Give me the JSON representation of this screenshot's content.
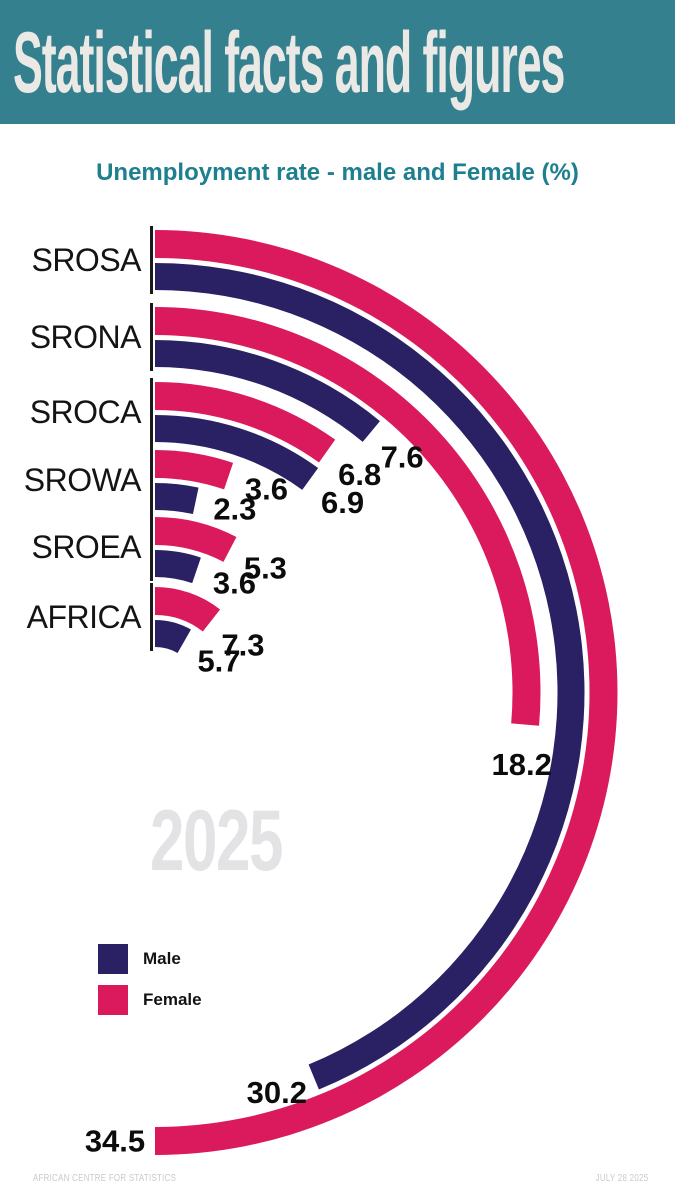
{
  "header": {
    "title": "Statistical facts and figures",
    "bg_color": "#34808e",
    "text_color": "#eae9e5"
  },
  "subtitle": {
    "text": "Unemployment rate - male and Female (%)",
    "color": "#1e7f8e"
  },
  "watermark": {
    "text": "2025",
    "color": "#e3e3e6"
  },
  "legend": {
    "items": [
      {
        "label": "Male",
        "color": "#2a2064"
      },
      {
        "label": "Female",
        "color": "#db1a5e"
      }
    ]
  },
  "footer": {
    "left": "AFRICAN CENTRE FOR STATISTICS",
    "right": "JULY 28 2025",
    "color": "#c7c9cc"
  },
  "chart_data": {
    "type": "radial-bar",
    "title": "Unemployment rate - male and Female (%)",
    "unit": "%",
    "categories": [
      "SROSA",
      "SRONA",
      "SROCA",
      "SROWA",
      "SROEA",
      "AFRICA"
    ],
    "series": [
      {
        "name": "Male",
        "color": "#2a2064",
        "values": [
          30.2,
          7.6,
          6.9,
          2.3,
          3.6,
          5.7
        ]
      },
      {
        "name": "Female",
        "color": "#db1a5e",
        "values": [
          34.5,
          18.2,
          6.8,
          3.6,
          5.3,
          7.3
        ]
      }
    ],
    "value_labels_shown": true,
    "start_angle": "12-o-clock",
    "direction": "clockwise",
    "degrees_per_unit": 5.2174,
    "value_at_180_degrees": 34.5,
    "axis_tick_color": "#1a1a1a",
    "value_label_color": "#0c0c0c",
    "legend_position": "bottom-left",
    "grid": false
  }
}
